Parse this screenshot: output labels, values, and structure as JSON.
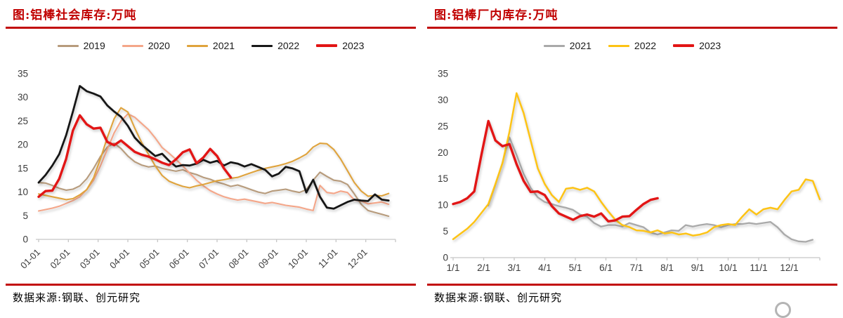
{
  "page": {
    "background": "#ffffff",
    "accent_color": "#c20b0b",
    "title_color": "#c00000"
  },
  "panels": [
    {
      "title": "图:铝棒社会库存:万吨",
      "source": "数据来源:钢联、创元研究"
    },
    {
      "title": "图:铝棒厂内库存:万吨",
      "source": "数据来源:钢联、创元研究"
    }
  ],
  "chart_data": [
    {
      "type": "line",
      "title": "铝棒社会库存:万吨",
      "unit": "万吨",
      "ylim": [
        0,
        35
      ],
      "yticks": [
        0,
        5,
        10,
        15,
        20,
        25,
        30,
        35
      ],
      "x_tick_labels": [
        "01-01",
        "02-01",
        "03-01",
        "04-01",
        "05-01",
        "06-01",
        "07-01",
        "08-01",
        "09-01",
        "10-01",
        "11-01",
        "12-01"
      ],
      "x_label_rotated": true,
      "grid": false,
      "legend_position": "top",
      "axis_color": "#c6c6c6",
      "tick_text_color": "#3a3a3a",
      "step_months": 0.23077,
      "series": [
        {
          "name": "2019",
          "color": "#b79b7c",
          "width": 2.1,
          "start_month": 1,
          "values": [
            12.0,
            11.9,
            11.4,
            10.8,
            10.4,
            10.6,
            11.3,
            12.8,
            15.0,
            17.5,
            19.5,
            20.3,
            19.2,
            17.6,
            16.4,
            15.7,
            15.3,
            15.5,
            15.0,
            14.7,
            14.4,
            14.7,
            14.1,
            13.7,
            13.1,
            12.7,
            12.1,
            11.7,
            11.2,
            11.5,
            11.0,
            10.5,
            10.0,
            9.7,
            10.2,
            10.4,
            10.6,
            10.2,
            9.9,
            10.5,
            12.5,
            14.2,
            13.3,
            12.5,
            12.3,
            11.6,
            9.6,
            7.4,
            6.1,
            5.7,
            5.3,
            4.9
          ]
        },
        {
          "name": "2020",
          "color": "#f4a689",
          "width": 2.1,
          "start_month": 1,
          "values": [
            6.0,
            6.3,
            6.6,
            7.0,
            7.6,
            8.2,
            9.0,
            10.5,
            12.5,
            15.5,
            19.0,
            22.5,
            25.0,
            26.5,
            25.8,
            24.5,
            23.2,
            21.4,
            19.4,
            18.2,
            16.9,
            15.5,
            14.0,
            12.5,
            11.3,
            10.3,
            9.6,
            9.0,
            8.6,
            8.3,
            8.5,
            8.2,
            7.9,
            7.6,
            7.8,
            7.5,
            7.2,
            7.0,
            6.8,
            6.4,
            6.1,
            11.4,
            9.9,
            9.7,
            10.2,
            9.9,
            8.3,
            8.1,
            7.5,
            7.7,
            7.9,
            7.4
          ]
        },
        {
          "name": "2021",
          "color": "#dfa33c",
          "width": 2.1,
          "start_month": 1,
          "values": [
            9.6,
            9.3,
            9.0,
            8.7,
            8.4,
            8.6,
            9.4,
            10.5,
            13.0,
            17.0,
            21.5,
            25.5,
            27.8,
            26.9,
            23.5,
            20.5,
            18.0,
            15.5,
            13.5,
            12.3,
            11.7,
            11.2,
            10.9,
            11.3,
            11.6,
            12.0,
            12.4,
            12.6,
            12.9,
            13.1,
            13.6,
            14.1,
            14.6,
            15.0,
            15.3,
            15.6,
            16.0,
            16.5,
            17.2,
            18.0,
            19.5,
            20.3,
            20.2,
            19.0,
            17.0,
            14.5,
            12.0,
            10.2,
            9.1,
            9.3,
            9.2,
            9.7
          ]
        },
        {
          "name": "2022",
          "color": "#181818",
          "width": 2.8,
          "start_month": 1,
          "values": [
            12.0,
            13.6,
            15.6,
            18.0,
            22.0,
            27.0,
            32.4,
            31.3,
            30.8,
            30.2,
            28.3,
            27.0,
            25.9,
            24.0,
            21.5,
            20.0,
            18.8,
            17.6,
            18.1,
            16.6,
            15.4,
            15.7,
            15.6,
            16.0,
            16.8,
            16.2,
            16.6,
            15.6,
            16.3,
            16.0,
            15.4,
            15.9,
            15.3,
            14.7,
            13.3,
            13.9,
            15.3,
            15.0,
            14.4,
            9.9,
            12.6,
            9.0,
            6.7,
            6.5,
            7.2,
            7.9,
            8.4,
            8.2,
            8.1,
            9.5,
            8.4,
            8.2
          ]
        },
        {
          "name": "2023",
          "color": "#e21414",
          "width": 3.4,
          "start_month": 1,
          "values": [
            9.0,
            10.2,
            10.3,
            12.8,
            17.0,
            23.0,
            26.2,
            24.3,
            23.4,
            23.6,
            20.6,
            19.9,
            20.9,
            19.7,
            18.5,
            17.9,
            17.5,
            16.9,
            16.2,
            15.7,
            16.9,
            18.4,
            19.0,
            16.1,
            17.3,
            19.1,
            17.6,
            15.0,
            13.1
          ]
        }
      ]
    },
    {
      "type": "line",
      "title": "铝棒厂内库存:万吨",
      "unit": "万吨",
      "ylim": [
        0,
        35
      ],
      "yticks": [
        0,
        5,
        10,
        15,
        20,
        25,
        30,
        35
      ],
      "x_tick_labels": [
        "1/1",
        "2/1",
        "3/1",
        "4/1",
        "5/1",
        "6/1",
        "7/1",
        "8/1",
        "9/1",
        "10/1",
        "11/1",
        "12/1"
      ],
      "x_label_rotated": false,
      "grid": false,
      "legend_position": "top",
      "axis_color": "#c6c6c6",
      "tick_text_color": "#3a3a3a",
      "step_months": 0.23077,
      "series": [
        {
          "name": "2021",
          "color": "#a9a9a9",
          "width": 2.3,
          "start_month": 2.15,
          "values": [
            9.9,
            13.8,
            18.0,
            22.9,
            19.6,
            16.0,
            13.3,
            11.5,
            10.6,
            10.2,
            9.8,
            9.5,
            9.1,
            8.2,
            7.8,
            6.6,
            5.9,
            6.2,
            6.2,
            5.9,
            6.6,
            6.2,
            5.8,
            4.8,
            4.4,
            4.8,
            5.2,
            5.1,
            6.2,
            5.9,
            6.2,
            6.4,
            6.2,
            5.8,
            6.2,
            6.4,
            6.4,
            6.6,
            6.4,
            6.6,
            6.8,
            5.8,
            4.4,
            3.5,
            3.1,
            3.0,
            3.4
          ]
        },
        {
          "name": "2022",
          "color": "#fdc313",
          "width": 2.5,
          "start_month": 1,
          "values": [
            3.5,
            4.5,
            5.5,
            6.8,
            8.5,
            10.2,
            14.0,
            18.0,
            24.0,
            31.3,
            27.5,
            22.3,
            17.0,
            14.0,
            11.9,
            10.6,
            13.1,
            13.3,
            12.9,
            13.3,
            12.6,
            10.6,
            8.8,
            7.2,
            6.2,
            5.8,
            5.2,
            5.1,
            4.8,
            5.2,
            4.6,
            4.8,
            4.4,
            4.6,
            4.2,
            4.4,
            4.8,
            5.8,
            6.2,
            6.4,
            6.2,
            7.8,
            9.2,
            8.2,
            9.2,
            9.5,
            9.2,
            11.0,
            12.6,
            12.9,
            14.9,
            14.6,
            11.1
          ]
        },
        {
          "name": "2023",
          "color": "#e21414",
          "width": 3.4,
          "start_month": 1,
          "values": [
            10.2,
            10.6,
            11.3,
            12.6,
            19.5,
            26.0,
            22.3,
            21.2,
            21.6,
            17.8,
            14.6,
            12.5,
            12.6,
            11.9,
            9.8,
            8.4,
            7.8,
            7.2,
            7.9,
            8.2,
            7.8,
            8.4,
            6.9,
            7.1,
            7.8,
            7.9,
            9.1,
            10.2,
            11.0,
            11.3
          ]
        }
      ]
    }
  ]
}
